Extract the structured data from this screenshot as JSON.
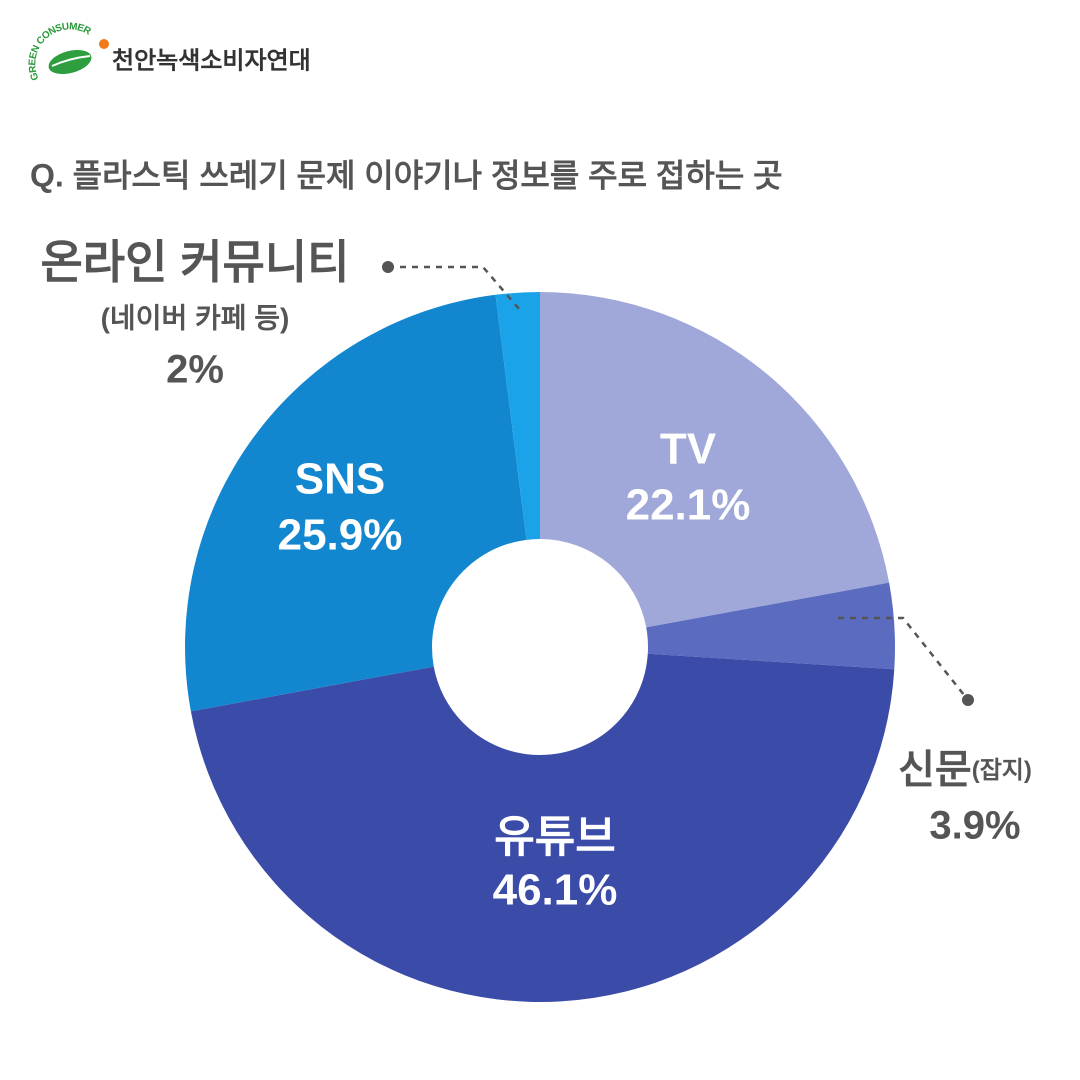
{
  "header": {
    "org": "천안녹색소비자연대",
    "logo_text": "GREEN CONSUMER"
  },
  "chart_data": {
    "type": "donut",
    "title": "Q. 플라스틱 쓰레기 문제 이야기나 정보를 주로 접하는 곳",
    "categories": [
      "TV",
      "신문",
      "유튜브",
      "SNS",
      "온라인 커뮤니티"
    ],
    "category_notes": [
      null,
      "(잡지)",
      null,
      null,
      "(네이버 카페 등)"
    ],
    "values": [
      22.1,
      3.9,
      46.1,
      25.9,
      2
    ],
    "value_labels": [
      "22.1%",
      "3.9%",
      "46.1%",
      "25.9%",
      "2%"
    ],
    "colors": [
      "#9fa8d8",
      "#5b6bbf",
      "#3b4ba8",
      "#1287d0",
      "#1ba3ea"
    ]
  }
}
